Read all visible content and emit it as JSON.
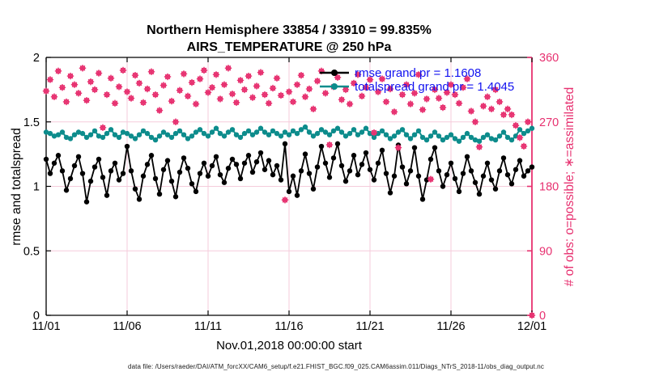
{
  "figure": {
    "title_line1": "Northern Hemisphere 33854 / 33910 = 99.835%",
    "title_line2": "AIRS_TEMPERATURE @ 250 hPa",
    "xlabel": "Nov.01,2018 00:00:00 start",
    "ylabel_left": "rmse and totalspread",
    "ylabel_right": "# of obs: o=possible; ∗=assimilated",
    "footer": "data file: /Users/raeder/DAI/ATM_forcXX/CAM6_setup/f.e21.FHIST_BGC.f09_025.CAM6assim.011/Diags_NTrS_2018-11/obs_diag_output.nc",
    "legend": {
      "rmse_label": "rmse grand pr = 1.1608",
      "totalspread_label": "totalspread grand pr = 1.4045"
    }
  },
  "colors": {
    "rmse": "#000000",
    "totalspread": "#0d8c8c",
    "obs": "#e73170",
    "grid": "#f5cbdb",
    "legend_text": "#1212f0",
    "axis": "#000000"
  },
  "chart_data": {
    "type": "line",
    "title": "Northern Hemisphere 33854 / 33910 = 99.835% | AIRS_TEMPERATURE @ 250 hPa",
    "xlabel": "Nov.01,2018 00:00:00 start",
    "x_start_day": 0,
    "x_end_day": 30,
    "x_step_days": 0.25,
    "x_tick_days": [
      0,
      5,
      10,
      15,
      20,
      25,
      30
    ],
    "x_ticklabels": [
      "11/01",
      "11/06",
      "11/11",
      "11/16",
      "11/21",
      "11/26",
      "12/01"
    ],
    "grid": true,
    "legend_position": "upper right inside, no box",
    "y_left": {
      "label": "rmse and totalspread",
      "range": [
        0,
        2
      ],
      "ticks": [
        0,
        0.5,
        1,
        1.5,
        2
      ],
      "ticklabels": [
        "0",
        "0.5",
        "1",
        "1.5",
        "2"
      ]
    },
    "y_right": {
      "label": "# of obs: o=possible; ∗=assimilated",
      "range": [
        0,
        360
      ],
      "ticks": [
        0,
        90,
        180,
        270,
        360
      ],
      "ticklabels": [
        "0",
        "90",
        "180",
        "270",
        "360"
      ]
    },
    "series": [
      {
        "name": "rmse",
        "axis": "left",
        "marker": "filled-dot",
        "grand_value": 1.1608,
        "color": "#000000",
        "values": [
          1.21,
          1.1,
          1.18,
          1.24,
          1.12,
          0.97,
          1.06,
          1.16,
          1.23,
          1.1,
          0.88,
          1.04,
          1.15,
          1.21,
          1.07,
          0.93,
          1.12,
          1.18,
          1.05,
          1.1,
          1.31,
          1.12,
          0.98,
          0.9,
          1.08,
          1.17,
          1.24,
          1.06,
          0.94,
          1.13,
          1.2,
          1.04,
          0.92,
          1.11,
          1.22,
          1.14,
          1.02,
          0.96,
          1.1,
          1.18,
          1.08,
          1.16,
          1.23,
          1.09,
          1.03,
          1.14,
          1.21,
          1.17,
          1.06,
          1.18,
          1.24,
          1.11,
          1.19,
          1.26,
          1.13,
          1.2,
          1.09,
          1.16,
          1.05,
          1.33,
          0.96,
          1.08,
          0.93,
          1.12,
          1.25,
          1.1,
          0.98,
          1.15,
          1.31,
          1.18,
          1.07,
          1.22,
          1.33,
          1.16,
          1.04,
          1.12,
          1.24,
          1.09,
          1.17,
          1.26,
          1.13,
          1.05,
          1.18,
          1.28,
          1.1,
          0.95,
          1.08,
          1.32,
          1.15,
          1.02,
          1.12,
          1.3,
          1.08,
          0.9,
          1.05,
          1.21,
          1.3,
          1.12,
          1.0,
          1.09,
          1.18,
          1.06,
          0.96,
          1.1,
          1.23,
          1.12,
          1.03,
          0.94,
          1.08,
          1.18,
          1.05,
          0.98,
          1.12,
          1.22,
          1.09,
          1.02,
          1.13,
          1.2,
          1.08,
          1.12,
          1.15
        ]
      },
      {
        "name": "totalspread",
        "axis": "left",
        "marker": "filled-dot",
        "grand_value": 1.4045,
        "color": "#0d8c8c",
        "values": [
          1.42,
          1.41,
          1.39,
          1.4,
          1.42,
          1.38,
          1.37,
          1.4,
          1.42,
          1.41,
          1.38,
          1.4,
          1.43,
          1.39,
          1.38,
          1.41,
          1.44,
          1.4,
          1.38,
          1.42,
          1.41,
          1.39,
          1.37,
          1.4,
          1.43,
          1.41,
          1.38,
          1.36,
          1.39,
          1.42,
          1.4,
          1.38,
          1.41,
          1.43,
          1.4,
          1.37,
          1.39,
          1.42,
          1.44,
          1.41,
          1.39,
          1.42,
          1.45,
          1.41,
          1.39,
          1.42,
          1.44,
          1.4,
          1.38,
          1.41,
          1.43,
          1.4,
          1.42,
          1.45,
          1.42,
          1.4,
          1.43,
          1.41,
          1.39,
          1.42,
          1.4,
          1.43,
          1.41,
          1.44,
          1.46,
          1.42,
          1.39,
          1.41,
          1.44,
          1.42,
          1.4,
          1.43,
          1.45,
          1.42,
          1.39,
          1.41,
          1.44,
          1.4,
          1.42,
          1.45,
          1.41,
          1.38,
          1.41,
          1.43,
          1.4,
          1.37,
          1.39,
          1.42,
          1.44,
          1.4,
          1.37,
          1.4,
          1.43,
          1.38,
          1.36,
          1.39,
          1.42,
          1.39,
          1.36,
          1.38,
          1.4,
          1.37,
          1.35,
          1.38,
          1.41,
          1.38,
          1.36,
          1.35,
          1.38,
          1.4,
          1.37,
          1.36,
          1.39,
          1.42,
          1.38,
          1.36,
          1.39,
          1.44,
          1.41,
          1.43,
          1.45
        ]
      },
      {
        "name": "obs_count",
        "axis": "right",
        "marker": "circle-and-asterisk",
        "possible_total": 33910,
        "assimilated_total": 33854,
        "assimilated_pct": 99.835,
        "color": "#e73170",
        "values": [
          313,
          329,
          305,
          341,
          318,
          298,
          334,
          322,
          310,
          345,
          300,
          326,
          315,
          338,
          262,
          308,
          331,
          296,
          319,
          342,
          312,
          303,
          335,
          324,
          297,
          316,
          340,
          308,
          286,
          321,
          333,
          299,
          270,
          314,
          337,
          306,
          325,
          295,
          330,
          342,
          311,
          318,
          336,
          302,
          322,
          345,
          309,
          297,
          328,
          315,
          334,
          304,
          320,
          339,
          308,
          296,
          317,
          331,
          307,
          161,
          312,
          298,
          322,
          335,
          305,
          316,
          288,
          327,
          341,
          310,
          238,
          319,
          332,
          301,
          315,
          295,
          324,
          336,
          306,
          318,
          329,
          255,
          312,
          330,
          298,
          316,
          284,
          234,
          308,
          322,
          295,
          310,
          336,
          287,
          302,
          190,
          315,
          303,
          290,
          311,
          322,
          308,
          296,
          318,
          330,
          285,
          270,
          235,
          292,
          305,
          288,
          315,
          298,
          280,
          288,
          280,
          265,
          248,
          236,
          270,
          0
        ]
      }
    ]
  }
}
